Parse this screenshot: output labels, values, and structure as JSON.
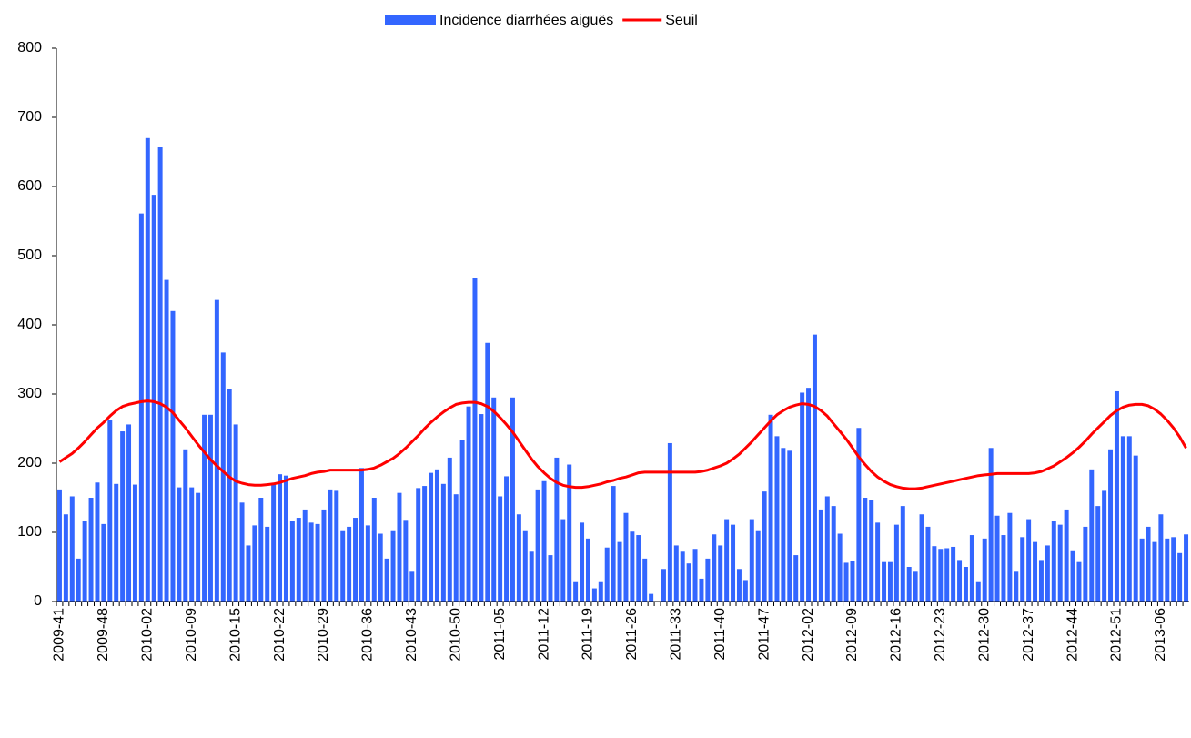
{
  "chart_data": {
    "type": "bar",
    "categories": [
      "2009-41",
      null,
      null,
      null,
      null,
      null,
      null,
      "2009-48",
      null,
      null,
      null,
      null,
      null,
      null,
      "2010-02",
      null,
      null,
      null,
      null,
      null,
      null,
      "2010-09",
      null,
      null,
      null,
      null,
      null,
      null,
      "2010-15",
      null,
      null,
      null,
      null,
      null,
      null,
      "2010-22",
      null,
      null,
      null,
      null,
      null,
      null,
      "2010-29",
      null,
      null,
      null,
      null,
      null,
      null,
      "2010-36",
      null,
      null,
      null,
      null,
      null,
      null,
      "2010-43",
      null,
      null,
      null,
      null,
      null,
      null,
      "2010-50",
      null,
      null,
      null,
      null,
      null,
      null,
      "2011-05",
      null,
      null,
      null,
      null,
      null,
      null,
      "2011-12",
      null,
      null,
      null,
      null,
      null,
      null,
      "2011-19",
      null,
      null,
      null,
      null,
      null,
      null,
      "2011-26",
      null,
      null,
      null,
      null,
      null,
      null,
      "2011-33",
      null,
      null,
      null,
      null,
      null,
      null,
      "2011-40",
      null,
      null,
      null,
      null,
      null,
      null,
      "2011-47",
      null,
      null,
      null,
      null,
      null,
      null,
      "2012-02",
      null,
      null,
      null,
      null,
      null,
      null,
      "2012-09",
      null,
      null,
      null,
      null,
      null,
      null,
      "2012-16",
      null,
      null,
      null,
      null,
      null,
      null,
      "2012-23",
      null,
      null,
      null,
      null,
      null,
      null,
      "2012-30",
      null,
      null,
      null,
      null,
      null,
      null,
      "2012-37",
      null,
      null,
      null,
      null,
      null,
      null,
      "2012-44",
      null,
      null,
      null,
      null,
      null,
      null,
      "2012-51",
      null,
      null,
      null,
      null,
      null,
      null,
      "2013-06",
      null,
      null,
      null,
      null
    ],
    "series": [
      {
        "name": "Incidence diarrhées aiguës",
        "type": "bar",
        "color": "#3366ff",
        "values": [
          162,
          126,
          152,
          62,
          116,
          150,
          172,
          112,
          263,
          170,
          246,
          256,
          169,
          561,
          670,
          588,
          657,
          465,
          420,
          165,
          220,
          165,
          157,
          270,
          270,
          436,
          360,
          307,
          256,
          143,
          81,
          110,
          150,
          108,
          170,
          184,
          182,
          116,
          121,
          133,
          114,
          112,
          133,
          162,
          160,
          103,
          108,
          121,
          193,
          110,
          150,
          98,
          62,
          103,
          157,
          118,
          43,
          164,
          167,
          186,
          191,
          170,
          208,
          155,
          234,
          282,
          468,
          271,
          374,
          295,
          152,
          181,
          295,
          126,
          103,
          72,
          162,
          174,
          67,
          208,
          119,
          198,
          28,
          114,
          91,
          19,
          28,
          78,
          167,
          86,
          128,
          101,
          96,
          62,
          11,
          0,
          47,
          229,
          81,
          72,
          55,
          76,
          33,
          62,
          97,
          81,
          119,
          111,
          47,
          31,
          119,
          103,
          159,
          270,
          239,
          222,
          218,
          67,
          302,
          309,
          386,
          133,
          152,
          138,
          98,
          56,
          59,
          251,
          150,
          147,
          114,
          57,
          57,
          111,
          138,
          50,
          43,
          126,
          108,
          80,
          76,
          77,
          79,
          60,
          50,
          96,
          28,
          91,
          222,
          124,
          96,
          128,
          43,
          93,
          119,
          86,
          60,
          81,
          116,
          111,
          133,
          74,
          57,
          108,
          191,
          138,
          160,
          220,
          304,
          239,
          239,
          211,
          91,
          108,
          86,
          126,
          91,
          93,
          70,
          97
        ]
      },
      {
        "name": "Seuil",
        "type": "line",
        "color": "#ff0000",
        "values": [
          202,
          208,
          214,
          222,
          231,
          241,
          251,
          259,
          268,
          276,
          282,
          285,
          287,
          289,
          290,
          289,
          286,
          281,
          273,
          262,
          251,
          239,
          227,
          216,
          205,
          196,
          188,
          180,
          174,
          171,
          169,
          168,
          168,
          169,
          170,
          172,
          175,
          178,
          180,
          182,
          185,
          187,
          188,
          190,
          190,
          190,
          190,
          190,
          190,
          191,
          193,
          197,
          202,
          207,
          214,
          222,
          231,
          240,
          250,
          259,
          267,
          274,
          280,
          285,
          287,
          288,
          288,
          286,
          282,
          275,
          266,
          256,
          245,
          232,
          219,
          206,
          195,
          186,
          178,
          172,
          168,
          166,
          165,
          165,
          166,
          168,
          170,
          173,
          175,
          178,
          180,
          183,
          186,
          187,
          187,
          187,
          187,
          187,
          187,
          187,
          187,
          187,
          188,
          190,
          193,
          196,
          200,
          206,
          213,
          222,
          231,
          241,
          251,
          261,
          270,
          276,
          281,
          284,
          286,
          285,
          282,
          276,
          268,
          257,
          246,
          235,
          222,
          209,
          198,
          188,
          180,
          174,
          169,
          166,
          164,
          163,
          163,
          164,
          166,
          168,
          170,
          172,
          174,
          176,
          178,
          180,
          182,
          183,
          184,
          185,
          185,
          185,
          185,
          185,
          185,
          186,
          188,
          192,
          196,
          202,
          208,
          215,
          223,
          232,
          242,
          251,
          260,
          269,
          276,
          281,
          284,
          285,
          285,
          283,
          278,
          271,
          262,
          251,
          238,
          222
        ]
      }
    ],
    "ylim": [
      0,
      800
    ],
    "yticks": [
      0,
      100,
      200,
      300,
      400,
      500,
      600,
      700,
      800
    ],
    "grid": false,
    "legend": "top"
  }
}
